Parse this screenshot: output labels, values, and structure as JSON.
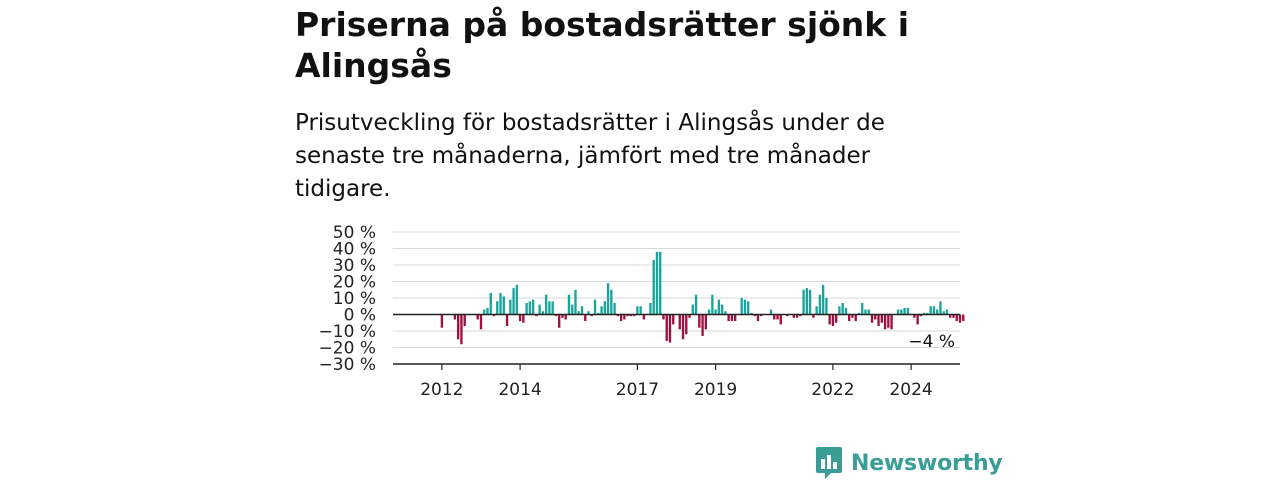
{
  "title": "Priserna på bostadsrätter sjönk i Alingsås",
  "subtitle": "Prisutveckling för bostadsrätter i Alingsås under de senaste tre månaderna, jämfört med tre månader tidigare.",
  "brand": {
    "name": "Newsworthy",
    "color": "#3a9e97"
  },
  "colors": {
    "positive": "#1aa59c",
    "negative": "#a10f3f"
  },
  "chart_data": {
    "type": "bar",
    "x_start": 2011.0,
    "x_step": 0.0833333,
    "xlim": [
      2010.75,
      2025.25
    ],
    "x_ticks": [
      2012,
      2014,
      2017,
      2019,
      2022,
      2024
    ],
    "x_tick_labels": [
      "2012",
      "2014",
      "2017",
      "2019",
      "2022",
      "2024"
    ],
    "ylim": [
      -30,
      50
    ],
    "y_ticks": [
      -30,
      -20,
      -10,
      0,
      10,
      20,
      30,
      40,
      50
    ],
    "y_tick_labels": [
      "−30 %",
      "−20 %",
      "−10 %",
      "0 %",
      "10 %",
      "20 %",
      "30 %",
      "40 %",
      "50 %"
    ],
    "values": [
      0,
      0,
      0,
      0,
      0,
      0,
      0,
      0,
      0,
      0,
      0,
      0,
      -8,
      0,
      0,
      0,
      -3,
      -15,
      -18,
      -7,
      0,
      0,
      0,
      -3,
      -9,
      3,
      4,
      13,
      -1,
      8,
      13,
      11,
      -7,
      9,
      16,
      18,
      -4,
      -5,
      7,
      8,
      9,
      -1,
      6,
      2,
      12,
      8,
      8,
      -1,
      -8,
      -2,
      -3,
      12,
      6,
      15,
      2,
      5,
      -4,
      2,
      -1,
      9,
      1,
      5,
      8,
      19,
      15,
      7,
      -1,
      -4,
      -3,
      -1,
      -1,
      -1,
      5,
      5,
      -3,
      0,
      7,
      33,
      38,
      38,
      -3,
      -16,
      -17,
      -6,
      0,
      -9,
      -15,
      -12,
      -2,
      6,
      12,
      -8,
      -13,
      -9,
      3,
      12,
      3,
      9,
      6,
      2,
      -4,
      -4,
      -4,
      0,
      10,
      9,
      8,
      1,
      -1,
      -4,
      -1,
      0,
      0,
      3,
      -3,
      -3,
      -6,
      0,
      -1,
      0,
      -2,
      -2,
      -1,
      15,
      16,
      15,
      -2,
      5,
      12,
      18,
      10,
      -6,
      -7,
      -5,
      5,
      7,
      4,
      -4,
      -2,
      -4,
      1,
      7,
      3,
      3,
      -5,
      -3,
      -7,
      -5,
      -9,
      -8,
      -9,
      0,
      3,
      3,
      4,
      4,
      0,
      -2,
      -6,
      -1,
      1,
      1,
      5,
      5,
      3,
      8,
      2,
      3,
      -2,
      -2,
      -4,
      -5,
      -4
    ],
    "annotations": [
      {
        "text": "−4 %"
      }
    ]
  }
}
